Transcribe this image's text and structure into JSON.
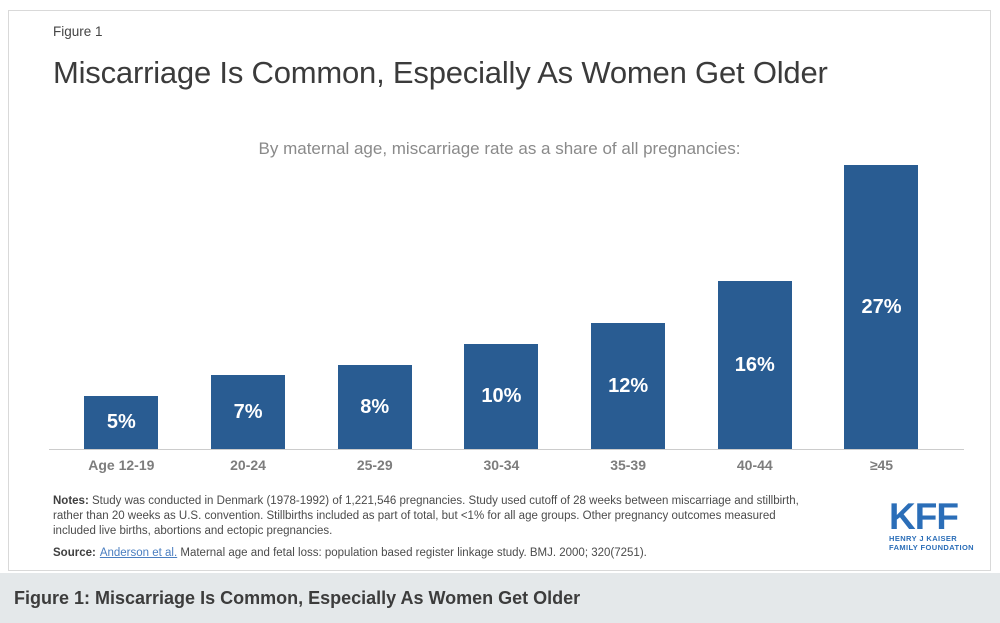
{
  "card": {
    "figure_label": "Figure 1",
    "title": "Miscarriage Is Common, Especially As Women Get Older",
    "subtitle": "By maternal age, miscarriage rate as a share of all pregnancies:"
  },
  "chart_data": {
    "type": "bar",
    "title": "By maternal age, miscarriage rate as a share of all pregnancies:",
    "categories": [
      "Age 12-19",
      "20-24",
      "25-29",
      "30-34",
      "35-39",
      "40-44",
      "≥45"
    ],
    "values": [
      5,
      7,
      8,
      10,
      12,
      16,
      27
    ],
    "value_labels": [
      "5%",
      "7%",
      "8%",
      "10%",
      "12%",
      "16%",
      "27%"
    ],
    "xlabel": "",
    "ylabel": "",
    "ylim": [
      0,
      28
    ],
    "grid": false,
    "legend": "none",
    "value_label_position": "inside-center",
    "bar_color": "#295c92",
    "axis_line_color": "#cccccc"
  },
  "notes": {
    "label": "Notes:",
    "line1": " Study was conducted in Denmark (1978-1992) of 1,221,546 pregnancies. Study used cutoff of 28 weeks between miscarriage and stillbirth,",
    "line2": "rather than 20 weeks as U.S. convention. Stillbirths included as part of total, but <1% for all age groups. Other pregnancy outcomes measured",
    "line3": "included live births, abortions and ectopic pregnancies."
  },
  "source": {
    "label": "Source:",
    "link_text": "Anderson et al.",
    "text": " Maternal age and fetal loss: population based register linkage study. BMJ. 2000; 320(7251)."
  },
  "logo": {
    "text": "KFF",
    "sub1": "HENRY J KAISER",
    "sub2": "FAMILY FOUNDATION"
  },
  "caption_bar": {
    "text": "Figure 1: Miscarriage Is Common, Especially As Women Get Older"
  },
  "colors": {
    "bar": "#295c92",
    "kff_blue": "#2b6eb8",
    "caption_background": "#e4e8ea",
    "title_text": "#3b3b3b",
    "subtitle_text": "#8a8a8a",
    "category_text": "#7d7d7d",
    "card_border": "#d9d9d9"
  }
}
